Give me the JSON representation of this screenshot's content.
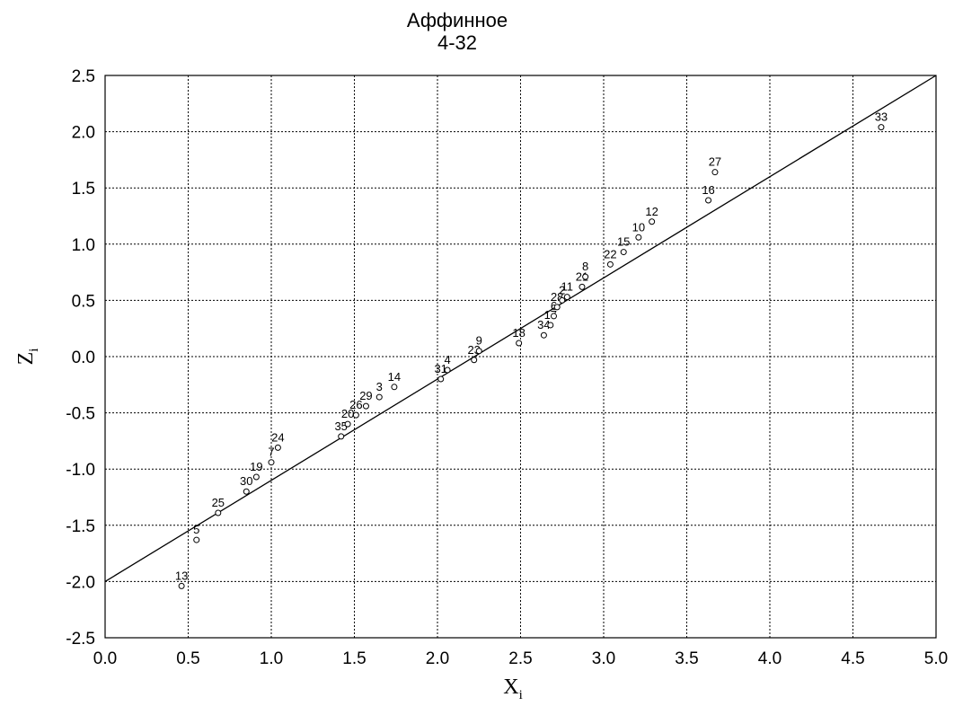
{
  "chart_data": {
    "type": "scatter",
    "title": [
      "Аффинное",
      "4-32"
    ],
    "xlabel": "X",
    "xlabel_sub": "i",
    "ylabel": "Z",
    "ylabel_sub": "i",
    "xlim": [
      0.0,
      5.0
    ],
    "ylim": [
      -2.5,
      2.5
    ],
    "xticks": [
      "0.0",
      "0.5",
      "1.0",
      "1.5",
      "2.0",
      "2.5",
      "3.0",
      "3.5",
      "4.0",
      "4.5",
      "5.0"
    ],
    "yticks": [
      "2.5",
      "2.0",
      "1.5",
      "1.0",
      "0.5",
      "0.0",
      "-0.5",
      "-1.0",
      "-1.5",
      "-2.0",
      "-2.5"
    ],
    "grid": true,
    "fit_line": {
      "intercept": -2.0,
      "slope": 0.9
    },
    "points": [
      {
        "label": "13",
        "x": 0.46,
        "y": -2.04
      },
      {
        "label": "5",
        "x": 0.55,
        "y": -1.63
      },
      {
        "label": "25",
        "x": 0.68,
        "y": -1.39
      },
      {
        "label": "30",
        "x": 0.85,
        "y": -1.2
      },
      {
        "label": "19",
        "x": 0.91,
        "y": -1.07
      },
      {
        "label": "7",
        "x": 1.0,
        "y": -0.94
      },
      {
        "label": "24",
        "x": 1.04,
        "y": -0.81
      },
      {
        "label": "35",
        "x": 1.42,
        "y": -0.71
      },
      {
        "label": "20",
        "x": 1.46,
        "y": -0.6
      },
      {
        "label": "26",
        "x": 1.51,
        "y": -0.52
      },
      {
        "label": "29",
        "x": 1.57,
        "y": -0.44
      },
      {
        "label": "3",
        "x": 1.65,
        "y": -0.36
      },
      {
        "label": "14",
        "x": 1.74,
        "y": -0.27
      },
      {
        "label": "31",
        "x": 2.02,
        "y": -0.2
      },
      {
        "label": "4",
        "x": 2.06,
        "y": -0.12
      },
      {
        "label": "23",
        "x": 2.22,
        "y": -0.03
      },
      {
        "label": "9",
        "x": 2.25,
        "y": 0.05
      },
      {
        "label": "18",
        "x": 2.49,
        "y": 0.12
      },
      {
        "label": "34",
        "x": 2.64,
        "y": 0.19
      },
      {
        "label": "17",
        "x": 2.68,
        "y": 0.28
      },
      {
        "label": "6",
        "x": 2.7,
        "y": 0.36
      },
      {
        "label": "28",
        "x": 2.72,
        "y": 0.44
      },
      {
        "label": "2",
        "x": 2.75,
        "y": 0.5
      },
      {
        "label": "11",
        "x": 2.78,
        "y": 0.53
      },
      {
        "label": "21",
        "x": 2.87,
        "y": 0.62
      },
      {
        "label": "8",
        "x": 2.89,
        "y": 0.71
      },
      {
        "label": "22",
        "x": 3.04,
        "y": 0.82
      },
      {
        "label": "15",
        "x": 3.12,
        "y": 0.93
      },
      {
        "label": "10",
        "x": 3.21,
        "y": 1.06
      },
      {
        "label": "12",
        "x": 3.29,
        "y": 1.2
      },
      {
        "label": "16",
        "x": 3.63,
        "y": 1.39
      },
      {
        "label": "27",
        "x": 3.67,
        "y": 1.64
      },
      {
        "label": "33",
        "x": 4.67,
        "y": 2.04
      }
    ]
  }
}
